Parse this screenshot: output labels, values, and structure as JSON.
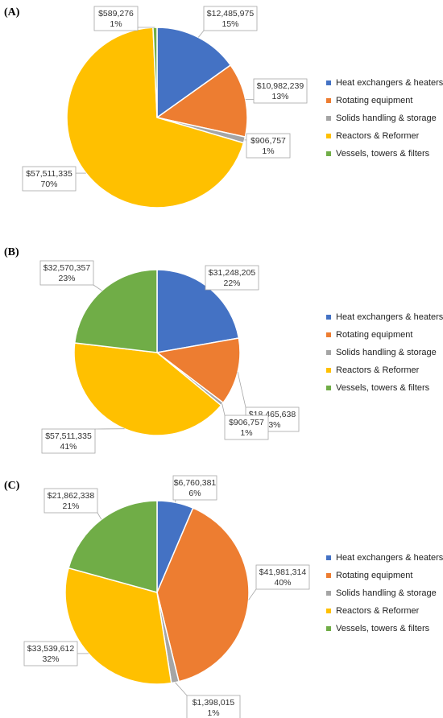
{
  "colors": {
    "Heat exchangers & heaters": "#4472C4",
    "Rotating equipment": "#ED7D31",
    "Solids handling & storage": "#A5A5A5",
    "Reactors & Reformer": "#FFC000",
    "Vessels, towers & filters": "#70AD47"
  },
  "chart_data": [
    {
      "type": "pie",
      "panel_label": "(A)",
      "categories": [
        "Heat exchangers & heaters",
        "Rotating equipment",
        "Solids handling & storage",
        "Reactors & Reformer",
        "Vessels, towers & filters"
      ],
      "values": [
        12485975,
        10982239,
        906757,
        57511335,
        589276
      ],
      "value_labels": [
        "$12,485,975",
        "$10,982,239",
        "$906,757",
        "$57,511,335",
        "$589,276"
      ],
      "percent_labels": [
        "15%",
        "13%",
        "1%",
        "70%",
        "1%"
      ],
      "legend": [
        "Heat exchangers & heaters",
        "Rotating equipment",
        "Solids handling & storage",
        "Reactors & Reformer",
        "Vessels, towers & filters"
      ],
      "legend_position": "right"
    },
    {
      "type": "pie",
      "panel_label": "(B)",
      "categories": [
        "Heat exchangers & heaters",
        "Rotating equipment",
        "Solids handling & storage",
        "Reactors & Reformer",
        "Vessels, towers & filters"
      ],
      "values": [
        31248205,
        18465638,
        906757,
        57511335,
        32570357
      ],
      "value_labels": [
        "$31,248,205",
        "$18,465,638",
        "$906,757",
        "$57,511,335",
        "$32,570,357"
      ],
      "percent_labels": [
        "22%",
        "13%",
        "1%",
        "41%",
        "23%"
      ],
      "legend": [
        "Heat exchangers & heaters",
        "Rotating equipment",
        "Solids handling & storage",
        "Reactors & Reformer",
        "Vessels, towers & filters"
      ],
      "legend_position": "right"
    },
    {
      "type": "pie",
      "panel_label": "(C)",
      "categories": [
        "Heat exchangers & heaters",
        "Rotating equipment",
        "Solids handling & storage",
        "Reactors & Reformer",
        "Vessels, towers & filters"
      ],
      "values": [
        6760381,
        41981314,
        1398015,
        33539612,
        21862338
      ],
      "value_labels": [
        "$6,760,381",
        "$41,981,314",
        "$1,398,015",
        "$33,539,612",
        "$21,862,338"
      ],
      "percent_labels": [
        "6%",
        "40%",
        "1%",
        "32%",
        "21%"
      ],
      "legend": [
        "Heat exchangers & heaters",
        "Rotating equipment",
        "Solids handling & storage",
        "Reactors & Reformer",
        "Vessels, towers & filters"
      ],
      "legend_position": "right"
    }
  ]
}
